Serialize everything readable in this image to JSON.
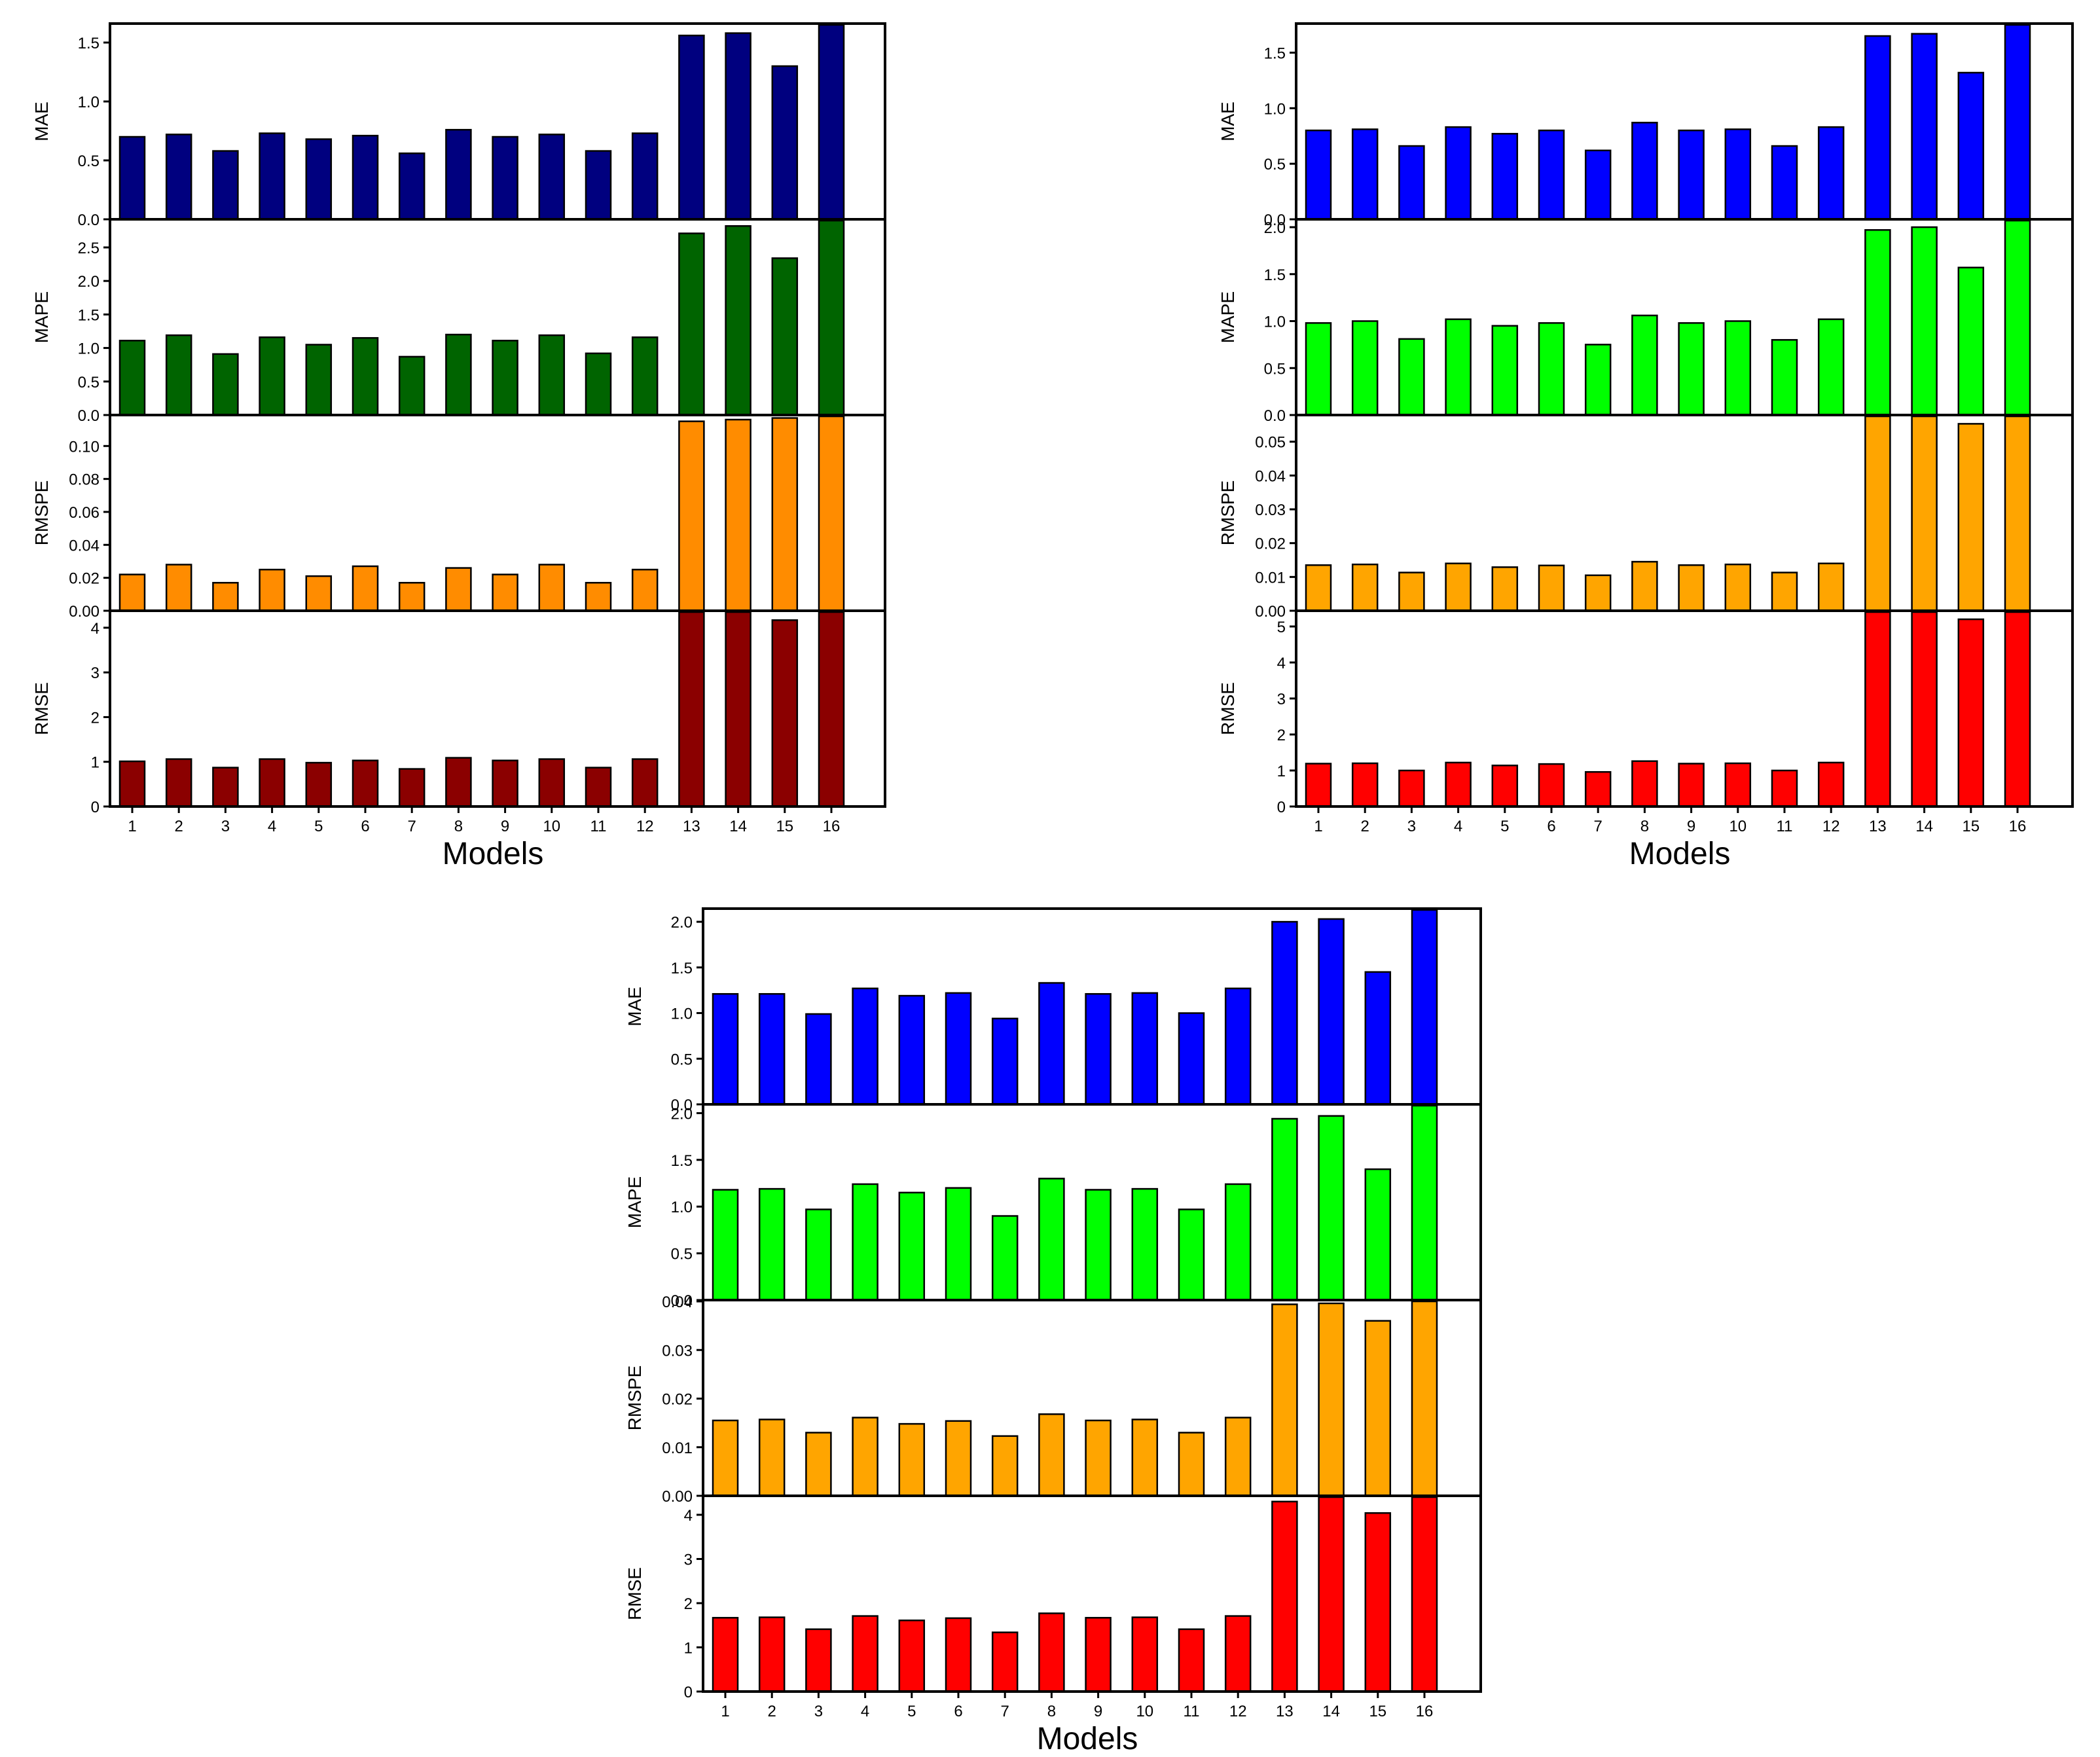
{
  "chart_data": [
    {
      "type": "bar",
      "xlabel": "Models",
      "categories": [
        "1",
        "2",
        "3",
        "4",
        "5",
        "6",
        "7",
        "8",
        "9",
        "10",
        "11",
        "12",
        "13",
        "14",
        "15",
        "16"
      ],
      "panels": [
        {
          "ylabel": "MAE",
          "color": "#00007f",
          "ylim": [
            0,
            1.65
          ],
          "yticks": [
            "0.0",
            "0.5",
            "1.0",
            "1.5"
          ],
          "values": [
            0.7,
            0.72,
            0.58,
            0.73,
            0.68,
            0.71,
            0.56,
            0.76,
            0.7,
            0.72,
            0.58,
            0.73,
            1.56,
            1.58,
            1.3,
            1.65
          ]
        },
        {
          "ylabel": "MAPE",
          "color": "#006400",
          "ylim": [
            0,
            2.9
          ],
          "yticks": [
            "0.0",
            "0.5",
            "1.0",
            "1.5",
            "2.0",
            "2.5"
          ],
          "values": [
            1.11,
            1.19,
            0.91,
            1.16,
            1.05,
            1.15,
            0.87,
            1.2,
            1.11,
            1.19,
            0.92,
            1.16,
            2.71,
            2.82,
            2.34,
            2.9
          ]
        },
        {
          "ylabel": "RMSPE",
          "color": "#ff8c00",
          "ylim": [
            0,
            0.118
          ],
          "yticks": [
            "0.00",
            "0.02",
            "0.04",
            "0.06",
            "0.08",
            "0.10"
          ],
          "values": [
            0.022,
            0.028,
            0.017,
            0.025,
            0.021,
            0.027,
            0.017,
            0.026,
            0.022,
            0.028,
            0.017,
            0.025,
            0.115,
            0.116,
            0.117,
            0.118
          ]
        },
        {
          "ylabel": "RMSE",
          "color": "#8b0000",
          "ylim": [
            0,
            4.35
          ],
          "yticks": [
            "0",
            "1",
            "2",
            "3",
            "4"
          ],
          "values": [
            1.01,
            1.06,
            0.87,
            1.06,
            0.98,
            1.03,
            0.84,
            1.09,
            1.03,
            1.06,
            0.87,
            1.06,
            4.35,
            4.35,
            4.17,
            4.35
          ]
        }
      ]
    },
    {
      "type": "bar",
      "xlabel": "Models",
      "categories": [
        "1",
        "2",
        "3",
        "4",
        "5",
        "6",
        "7",
        "8",
        "9",
        "10",
        "11",
        "12",
        "13",
        "14",
        "15",
        "16"
      ],
      "panels": [
        {
          "ylabel": "MAE",
          "color": "#0000ff",
          "ylim": [
            0,
            1.75
          ],
          "yticks": [
            "0.0",
            "0.5",
            "1.0",
            "1.5"
          ],
          "values": [
            0.8,
            0.81,
            0.66,
            0.83,
            0.77,
            0.8,
            0.62,
            0.87,
            0.8,
            0.81,
            0.66,
            0.83,
            1.65,
            1.67,
            1.32,
            1.75
          ]
        },
        {
          "ylabel": "MAPE",
          "color": "#00ff00",
          "ylim": [
            0,
            2.07
          ],
          "yticks": [
            "0.0",
            "0.5",
            "1.0",
            "1.5",
            "2.0"
          ],
          "values": [
            0.98,
            1.0,
            0.81,
            1.02,
            0.95,
            0.98,
            0.75,
            1.06,
            0.98,
            1.0,
            0.8,
            1.02,
            1.97,
            2.0,
            1.57,
            2.07
          ]
        },
        {
          "ylabel": "RMSPE",
          "color": "#ffa500",
          "ylim": [
            0,
            0.0575
          ],
          "yticks": [
            "0.00",
            "0.01",
            "0.02",
            "0.03",
            "0.04",
            "0.05"
          ],
          "values": [
            0.0135,
            0.0137,
            0.0113,
            0.014,
            0.0129,
            0.0134,
            0.0105,
            0.0145,
            0.0135,
            0.0137,
            0.0113,
            0.014,
            0.0575,
            0.0575,
            0.0553,
            0.0575
          ]
        },
        {
          "ylabel": "RMSE",
          "color": "#ff0000",
          "ylim": [
            0,
            5.4
          ],
          "yticks": [
            "0",
            "1",
            "2",
            "3",
            "4",
            "5"
          ],
          "values": [
            1.19,
            1.2,
            1.0,
            1.22,
            1.14,
            1.18,
            0.96,
            1.26,
            1.19,
            1.2,
            1.0,
            1.22,
            5.4,
            5.4,
            5.2,
            5.4
          ]
        }
      ]
    },
    {
      "type": "bar",
      "xlabel": "Models",
      "categories": [
        "1",
        "2",
        "3",
        "4",
        "5",
        "6",
        "7",
        "8",
        "9",
        "10",
        "11",
        "12",
        "13",
        "14",
        "15",
        "16"
      ],
      "panels": [
        {
          "ylabel": "MAE",
          "color": "#0000ff",
          "ylim": [
            0,
            2.13
          ],
          "yticks": [
            "0.0",
            "0.5",
            "1.0",
            "1.5",
            "2.0"
          ],
          "values": [
            1.21,
            1.21,
            0.99,
            1.27,
            1.19,
            1.22,
            0.94,
            1.33,
            1.21,
            1.22,
            1.0,
            1.27,
            2.0,
            2.03,
            1.45,
            2.13
          ]
        },
        {
          "ylabel": "MAPE",
          "color": "#00ff00",
          "ylim": [
            0,
            2.08
          ],
          "yticks": [
            "0.0",
            "0.5",
            "1.0",
            "1.5",
            "2.0"
          ],
          "values": [
            1.18,
            1.19,
            0.97,
            1.24,
            1.15,
            1.2,
            0.9,
            1.3,
            1.18,
            1.19,
            0.97,
            1.24,
            1.94,
            1.97,
            1.4,
            2.08
          ]
        },
        {
          "ylabel": "RMSPE",
          "color": "#ffa500",
          "ylim": [
            0,
            0.04
          ],
          "yticks": [
            "0.00",
            "0.01",
            "0.02",
            "0.03",
            "0.04"
          ],
          "values": [
            0.0155,
            0.0157,
            0.013,
            0.0161,
            0.0148,
            0.0154,
            0.0123,
            0.0168,
            0.0155,
            0.0157,
            0.013,
            0.0161,
            0.0394,
            0.0396,
            0.036,
            0.04
          ]
        },
        {
          "ylabel": "RMSE",
          "color": "#ff0000",
          "ylim": [
            0,
            4.4
          ],
          "yticks": [
            "0",
            "1",
            "2",
            "3",
            "4"
          ],
          "values": [
            1.67,
            1.68,
            1.41,
            1.71,
            1.61,
            1.66,
            1.34,
            1.77,
            1.67,
            1.68,
            1.41,
            1.71,
            4.3,
            4.4,
            4.04,
            4.4
          ]
        }
      ]
    }
  ]
}
